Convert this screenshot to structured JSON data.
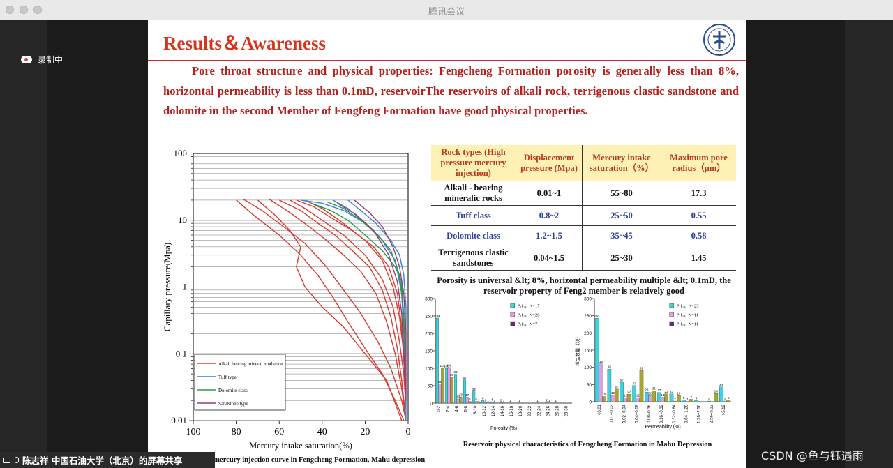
{
  "window": {
    "title": "腾讯会议"
  },
  "recording": {
    "label": "录制中"
  },
  "share": {
    "label": "陈志祥 中国石油大学（北京）的屏幕共享"
  },
  "watermark": "CSDN @鱼与钰遇雨",
  "slide": {
    "title": "Results＆Awareness",
    "paragraph": "Pore throat structure and physical properties: Fengcheng Formation porosity is generally less than 8%, horizontal permeability is less than 0.1mD, reservoirThe reservoirs of alkali rock, terrigenous clastic sandstone and dolomite in the second Member of Fengfeng Formation have good physical properties.",
    "table": {
      "headers": [
        "Rock types (High pressure mercury injection)",
        "Displacement pressure (Mpa)",
        "Mercury intake saturation（%）",
        "Maximum pore radius（μm）"
      ],
      "rows": [
        [
          "Alkali - bearing mineralic rocks",
          "0.01~1",
          "55~80",
          "17.3"
        ],
        [
          "Tuff class",
          "0.8~2",
          "25~50",
          "0.55"
        ],
        [
          "Dolomite class",
          "1.2~1.5",
          "35~45",
          "0.58"
        ],
        [
          "Terrigenous clastic sandstones",
          "0.04~1.5",
          "25~30",
          "1.45"
        ]
      ]
    },
    "table_caption": "Porosity is universal &lt; 8%, horizontal permeability multiple &lt; 0.1mD, the reservoir property of Feng2 member is relatively good",
    "bar_caption": "Reservoir physical characteristics of Fengcheng Formation in Mahu Depression",
    "curve_caption": "e mercury injection curve in Fengcheng Formation, Mahu depression"
  },
  "colors": {
    "title_red": "#d7341f",
    "text_red": "#b7201b",
    "header_fill": "#fdf1b6",
    "table_blue": "#2a3f9e",
    "cyan": "#39d4df",
    "pink": "#e79be2",
    "olive": "#a9a62e",
    "purple": "#6b2a82"
  },
  "chart_data": [
    {
      "type": "line",
      "title": "",
      "xlabel": "Mercury intake saturation(%)",
      "ylabel": "Capillary pressure(Mpa)",
      "yscale": "log",
      "ylim": [
        0.01,
        100
      ],
      "xlim": [
        100,
        0
      ],
      "x_ticks": [
        "100",
        "80",
        "60",
        "40",
        "20",
        "0"
      ],
      "y_ticks": [
        "100",
        "10",
        "1",
        "0.1",
        "0.01"
      ],
      "legend": [
        "Alkali bearing mineral mudstone",
        "Tuff type",
        "Dolomite class",
        "Sandstone type"
      ],
      "series": [
        {
          "name": "Alkali bearing mineral mudstone",
          "points": [
            [
              80,
              20
            ],
            [
              72,
              12
            ],
            [
              60,
              6
            ],
            [
              50,
              3
            ],
            [
              42,
              1.5
            ],
            [
              35,
              0.7
            ],
            [
              28,
              0.3
            ],
            [
              20,
              0.12
            ],
            [
              12,
              0.05
            ],
            [
              6,
              0.02
            ],
            [
              2,
              0.01
            ]
          ]
        },
        {
          "name": "Alkali bearing mineral mudstone",
          "points": [
            [
              77,
              21
            ],
            [
              68,
              14
            ],
            [
              58,
              8
            ],
            [
              48,
              4.5
            ],
            [
              38,
              2
            ],
            [
              30,
              0.9
            ],
            [
              22,
              0.4
            ],
            [
              14,
              0.15
            ],
            [
              8,
              0.06
            ],
            [
              3,
              0.02
            ],
            [
              1,
              0.01
            ]
          ]
        },
        {
          "name": "Alkali bearing mineral mudstone",
          "points": [
            [
              70,
              20
            ],
            [
              62,
              12
            ],
            [
              55,
              7
            ],
            [
              50,
              4
            ],
            [
              52,
              2
            ],
            [
              48,
              1
            ],
            [
              40,
              0.5
            ],
            [
              30,
              0.25
            ],
            [
              20,
              0.1
            ],
            [
              10,
              0.04
            ],
            [
              3,
              0.01
            ]
          ]
        },
        {
          "name": "Alkali bearing mineral mudstone",
          "points": [
            [
              65,
              21
            ],
            [
              55,
              13
            ],
            [
              46,
              8
            ],
            [
              38,
              5
            ],
            [
              30,
              3
            ],
            [
              22,
              1.7
            ],
            [
              15,
              0.8
            ],
            [
              10,
              0.3
            ],
            [
              6,
              0.1
            ],
            [
              3,
              0.03
            ],
            [
              1,
              0.01
            ]
          ]
        },
        {
          "name": "Alkali bearing mineral mudstone",
          "points": [
            [
              60,
              20
            ],
            [
              50,
              14
            ],
            [
              42,
              9
            ],
            [
              34,
              6
            ],
            [
              26,
              3.5
            ],
            [
              18,
              2
            ],
            [
              12,
              0.9
            ],
            [
              8,
              0.35
            ],
            [
              5,
              0.12
            ],
            [
              3,
              0.04
            ],
            [
              1,
              0.01
            ]
          ]
        },
        {
          "name": "Alkali bearing mineral mudstone",
          "points": [
            [
              55,
              20
            ],
            [
              48,
              15
            ],
            [
              40,
              10
            ],
            [
              30,
              6
            ],
            [
              20,
              3
            ],
            [
              12,
              1.3
            ],
            [
              7,
              0.5
            ],
            [
              4,
              0.15
            ],
            [
              2,
              0.05
            ],
            [
              1,
              0.015
            ]
          ]
        },
        {
          "name": "Alkali bearing mineral mudstone",
          "points": [
            [
              52,
              20
            ],
            [
              44,
              16
            ],
            [
              36,
              11
            ],
            [
              26,
              7
            ],
            [
              16,
              4
            ],
            [
              9,
              2
            ],
            [
              5,
              0.8
            ],
            [
              3,
              0.25
            ],
            [
              2,
              0.08
            ],
            [
              1,
              0.02
            ]
          ]
        },
        {
          "name": "Alkali bearing mineral mudstone",
          "points": [
            [
              48,
              20
            ],
            [
              40,
              15
            ],
            [
              32,
              10
            ],
            [
              20,
              5
            ],
            [
              12,
              2.5
            ],
            [
              7,
              1
            ],
            [
              4,
              0.35
            ],
            [
              2,
              0.1
            ],
            [
              1,
              0.02
            ]
          ]
        },
        {
          "name": "Tuff type",
          "points": [
            [
              50,
              20
            ],
            [
              40,
              18
            ],
            [
              30,
              14
            ],
            [
              20,
              9
            ],
            [
              12,
              5
            ],
            [
              6,
              2.5
            ],
            [
              3,
              0.8
            ],
            [
              2,
              0.2
            ],
            [
              1,
              0.05
            ],
            [
              1,
              0.01
            ]
          ]
        },
        {
          "name": "Tuff type",
          "points": [
            [
              35,
              20
            ],
            [
              28,
              15
            ],
            [
              20,
              9
            ],
            [
              12,
              5
            ],
            [
              6,
              2.5
            ],
            [
              3,
              1
            ],
            [
              2,
              0.2
            ],
            [
              1,
              0.03
            ]
          ]
        },
        {
          "name": "Tuff type",
          "points": [
            [
              28,
              20
            ],
            [
              22,
              14
            ],
            [
              15,
              9
            ],
            [
              8,
              5
            ],
            [
              4,
              3
            ],
            [
              2,
              1.5
            ],
            [
              1,
              0.5
            ],
            [
              1,
              0.1
            ]
          ]
        },
        {
          "name": "Dolomite class",
          "points": [
            [
              45,
              18
            ],
            [
              36,
              14
            ],
            [
              28,
              10
            ],
            [
              20,
              6
            ],
            [
              12,
              3.5
            ],
            [
              6,
              2
            ],
            [
              3,
              1.2
            ],
            [
              2,
              0.3
            ],
            [
              1,
              0.05
            ]
          ]
        },
        {
          "name": "Dolomite class",
          "points": [
            [
              38,
              19
            ],
            [
              30,
              15
            ],
            [
              22,
              10
            ],
            [
              14,
              6
            ],
            [
              8,
              3.5
            ],
            [
              4,
              1.5
            ],
            [
              2,
              0.4
            ],
            [
              1,
              0.08
            ]
          ]
        },
        {
          "name": "Sandstone type",
          "points": [
            [
              25,
              20
            ],
            [
              18,
              13
            ],
            [
              12,
              8
            ],
            [
              7,
              4
            ],
            [
              4,
              2
            ],
            [
              2,
              0.8
            ],
            [
              1,
              0.2
            ],
            [
              1,
              0.02
            ]
          ]
        },
        {
          "name": "Sandstone type",
          "points": [
            [
              33,
              18
            ],
            [
              24,
              12
            ],
            [
              16,
              7
            ],
            [
              9,
              3
            ],
            [
              5,
              1.2
            ],
            [
              3,
              0.4
            ],
            [
              2,
              0.1
            ],
            [
              1,
              0.02
            ]
          ]
        }
      ]
    },
    {
      "type": "bar",
      "xlabel": "Porosity (%)",
      "ylabel": "",
      "ylim": [
        0,
        300
      ],
      "y_ticks": [
        "0",
        "50",
        "100",
        "150",
        "200",
        "250",
        "300"
      ],
      "categories": [
        "0-2",
        "2-4",
        "4-6",
        "6-8",
        "8-10",
        "10-12",
        "12-14",
        "14-16",
        "16-18",
        "18-20",
        "20-22",
        "22-24",
        "24-26",
        "26-28",
        "28-30"
      ],
      "series": [
        {
          "name": "P₁f₂，N=17",
          "color": "#39d4df",
          "values": [
            244,
            100,
            83,
            67,
            33,
            8,
            4,
            2,
            1,
            1,
            0,
            1,
            2,
            1,
            0
          ]
        },
        {
          "name": "P₁f₂，N=20",
          "color": "#e79be2",
          "values": [
            55,
            102,
            12,
            17,
            5,
            2,
            1,
            1,
            0,
            0,
            0,
            0,
            1,
            0,
            0
          ]
        },
        {
          "name": "P₁f₁，N=7",
          "color": "#6b2a82",
          "values": [
            0,
            0,
            0,
            0,
            0,
            0,
            0,
            0,
            0,
            0,
            0,
            0,
            0,
            0,
            0
          ]
        },
        {
          "name": "",
          "color": "#a9a62e",
          "values": [
            101,
            75,
            18,
            5,
            2,
            1,
            0,
            0,
            0,
            0,
            0,
            0,
            0,
            0,
            0
          ]
        }
      ],
      "legend": [
        "P₁f₂，N=17",
        "P₁f₂，N=20",
        "P₁f₁，N=7"
      ],
      "value_labels": [
        "244",
        "100",
        "102",
        "101",
        "83",
        "67",
        "33"
      ]
    },
    {
      "type": "bar",
      "xlabel": "Permeability (%)",
      "ylabel": "样品数量（块）",
      "ylim": [
        0,
        300
      ],
      "y_ticks": [
        "0",
        "50",
        "100",
        "150",
        "200",
        "250",
        "300"
      ],
      "categories": [
        "<0.01",
        "0.01~0.02",
        "0.02~0.04",
        "0.04~0.08",
        "0.08~0.16",
        "0.16~0.32",
        "0.32~0.64",
        "0.64~1.28",
        "1.28~2.56",
        "2.56~5.12",
        ">5.12"
      ],
      "series": [
        {
          "name": "P₁f₂，N=23",
          "color": "#39d4df",
          "values": [
            243,
            95,
            57,
            47,
            28,
            27,
            23,
            5,
            4,
            2,
            43
          ]
        },
        {
          "name": "P₁f₂，N=11",
          "color": "#e79be2",
          "values": [
            110,
            19,
            12,
            12,
            18,
            13,
            2,
            1,
            0,
            0,
            2
          ]
        },
        {
          "name": "P₁f₁，N=11",
          "color": "#6b2a82",
          "values": [
            0,
            0,
            0,
            0,
            0,
            0,
            0,
            0,
            0,
            0,
            0
          ]
        },
        {
          "name": "",
          "color": "#a9a62e",
          "values": [
            15,
            37,
            22,
            91,
            32,
            23,
            18,
            7,
            0,
            24,
            5
          ]
        }
      ],
      "legend": [
        "P₁f₂，N=23",
        "P₁f₂，N=11",
        "P₁f₁，N=11"
      ],
      "value_labels": [
        "243",
        "110",
        "95",
        "57",
        "65",
        "91",
        "47",
        "43"
      ]
    }
  ]
}
